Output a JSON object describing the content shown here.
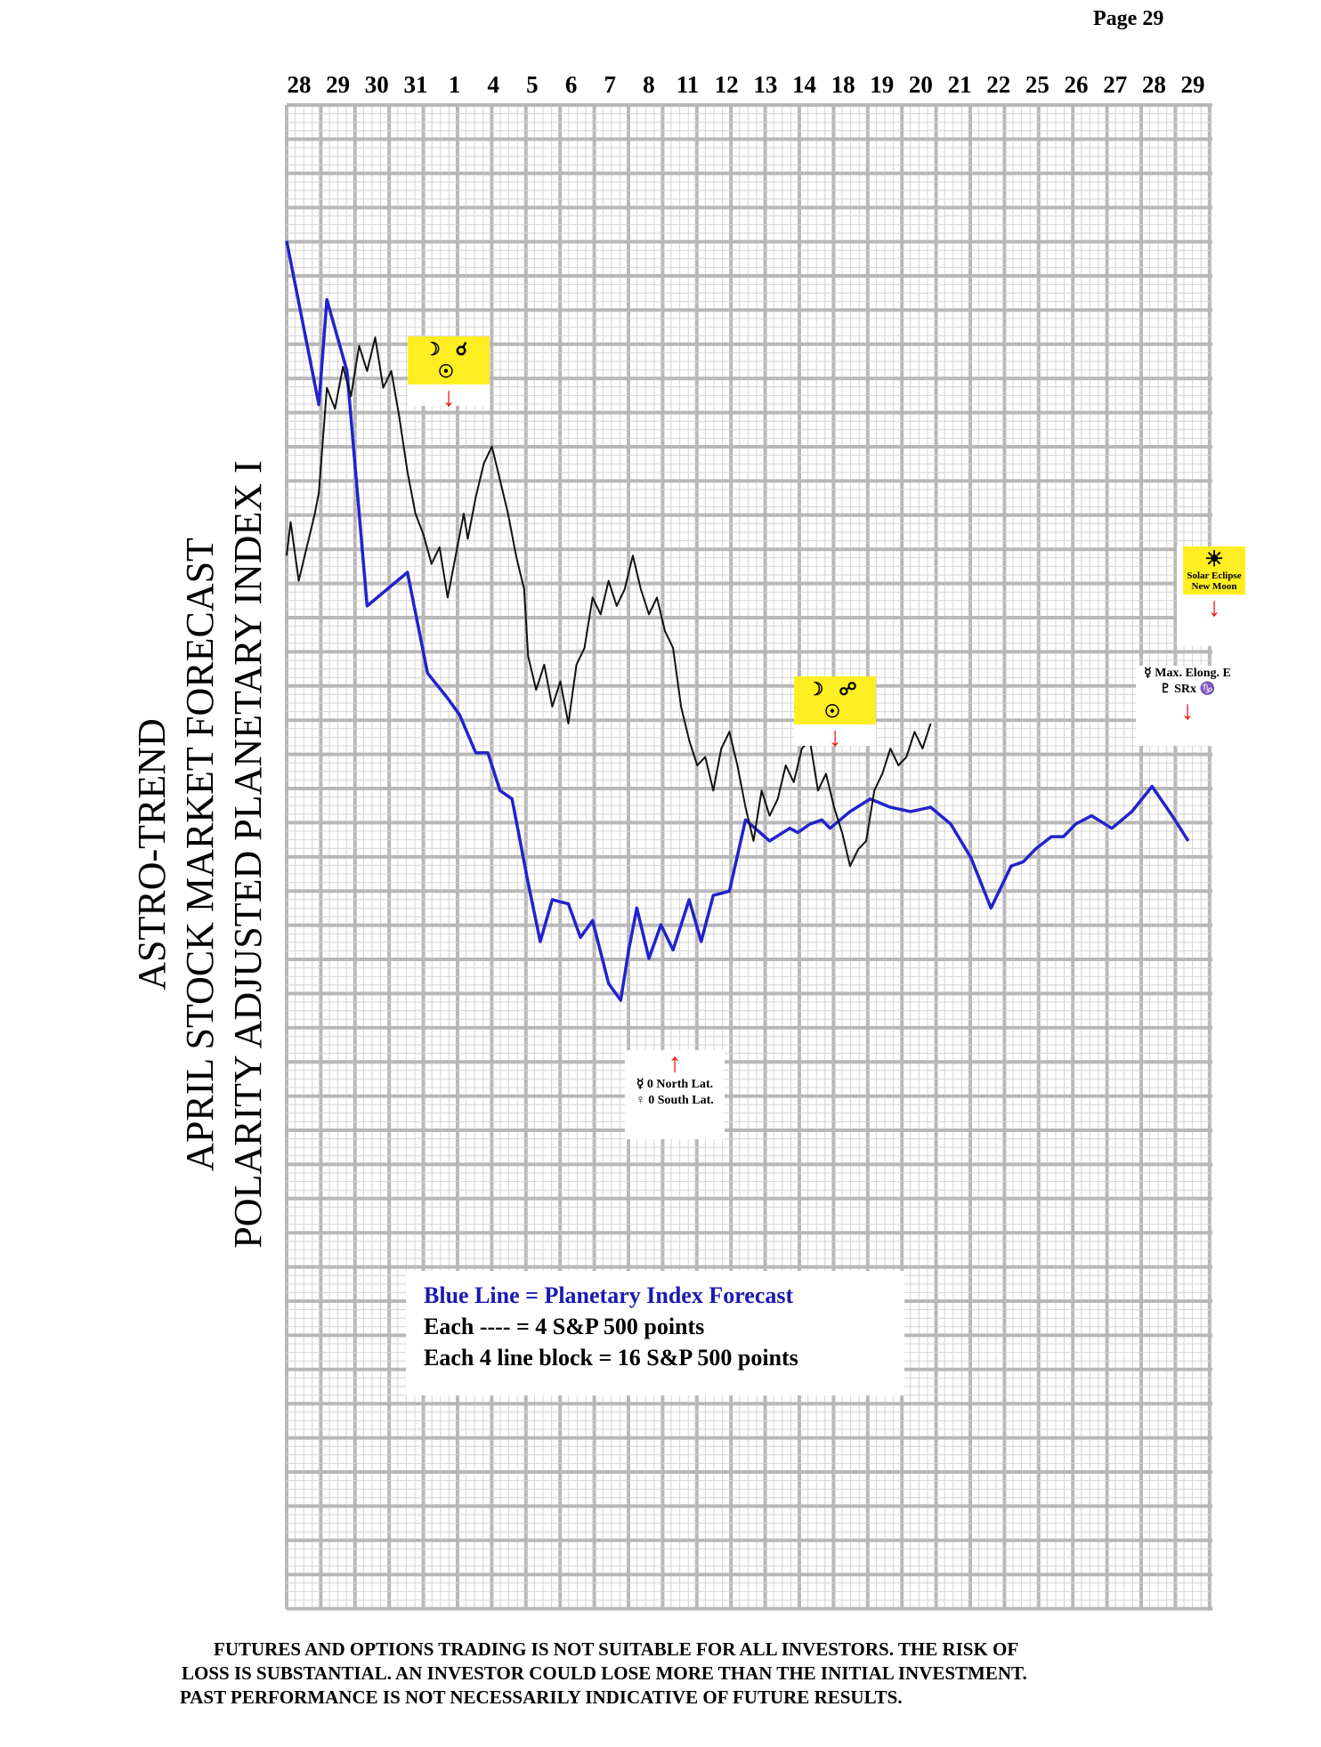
{
  "page": {
    "number_label": "Page  29"
  },
  "title_lines": [
    "ASTRO-TREND",
    "APRIL STOCK MARKET FORECAST",
    "POLARITY ADJUSTED PLANETARY INDEX I"
  ],
  "colors": {
    "forecast_line": "#2222cc",
    "market_line": "#111111",
    "grid_major": "#b8b8b8",
    "grid_minor": "#d4d4d4",
    "annotation_highlight": "#ffee22",
    "arrow": "#ee1111"
  },
  "chart_data": {
    "type": "line",
    "x_date_labels": [
      "28",
      "29",
      "30",
      "31",
      "1",
      "4",
      "5",
      "6",
      "7",
      "8",
      "11",
      "12",
      "13",
      "14",
      "18",
      "19",
      "20",
      "21",
      "22",
      "25",
      "26",
      "27",
      "28",
      "29"
    ],
    "grid": true,
    "series": [
      {
        "name": "Blue Line",
        "color": "#2222cc",
        "x": [
          0,
          0.8,
          1.0,
          1.5,
          2.0,
          3.0,
          3.5,
          4.0,
          4.3,
          4.7,
          5.0,
          5.3,
          5.6,
          6.0,
          6.3,
          6.6,
          7.0,
          7.3,
          7.6,
          8.0,
          8.3,
          8.5,
          8.7,
          9.0,
          9.3,
          9.6,
          10.0,
          10.3,
          10.6,
          11.0,
          11.4,
          12.0,
          12.5,
          12.7,
          13.0,
          13.3,
          13.5,
          14.0,
          14.5,
          15.0,
          15.5,
          16.0,
          16.5,
          17.0,
          17.5,
          18.0,
          18.3,
          18.6,
          19.0,
          19.3,
          19.6,
          20.0,
          20.5,
          21.0,
          21.5,
          22.0,
          22.4
        ],
        "y": [
          45,
          6,
          31,
          14,
          -42,
          -34,
          -58,
          -64,
          -68,
          -77,
          -77,
          -86,
          -88,
          -108,
          -122,
          -112,
          -113,
          -121,
          -117,
          -132,
          -136,
          -124,
          -114,
          -126,
          -118,
          -124,
          -112,
          -122,
          -111,
          -110,
          -93,
          -98,
          -95,
          -96,
          -94,
          -93,
          -95,
          -91,
          -88,
          -90,
          -91,
          -90,
          -94,
          -102,
          -114,
          -104,
          -103,
          -100,
          -97,
          -97,
          -94,
          -92,
          -95,
          -91,
          -85,
          -92,
          -98
        ]
      },
      {
        "name": "S&P 500",
        "color": "#111111",
        "x": [
          0,
          0.1,
          0.3,
          0.5,
          0.7,
          0.8,
          1.0,
          1.2,
          1.4,
          1.6,
          1.8,
          2.0,
          2.2,
          2.4,
          2.6,
          2.8,
          3.0,
          3.2,
          3.4,
          3.6,
          3.8,
          4.0,
          4.2,
          4.4,
          4.5,
          4.7,
          4.9,
          5.1,
          5.3,
          5.5,
          5.7,
          5.9,
          6.0,
          6.2,
          6.4,
          6.6,
          6.8,
          7.0,
          7.2,
          7.4,
          7.6,
          7.8,
          8.0,
          8.2,
          8.4,
          8.6,
          8.8,
          9.0,
          9.2,
          9.4,
          9.6,
          9.8,
          10.0,
          10.2,
          10.4,
          10.6,
          10.8,
          11.0,
          11.2,
          11.4,
          11.6,
          11.8,
          12.0,
          12.2,
          12.4,
          12.6,
          12.8,
          13.0,
          13.2,
          13.4,
          13.6,
          13.8,
          14.0,
          14.2,
          14.4,
          14.6,
          14.8,
          15.0,
          15.2,
          15.4,
          15.6,
          15.8,
          16.0
        ],
        "y": [
          -30,
          -22,
          -36,
          -28,
          -20,
          -15,
          10,
          5,
          15,
          8,
          20,
          14,
          22,
          10,
          14,
          3,
          -10,
          -20,
          -25,
          -32,
          -28,
          -40,
          -30,
          -20,
          -26,
          -16,
          -8,
          -4,
          -12,
          -20,
          -30,
          -38,
          -54,
          -62,
          -56,
          -66,
          -60,
          -70,
          -56,
          -52,
          -40,
          -44,
          -36,
          -42,
          -38,
          -30,
          -38,
          -44,
          -40,
          -48,
          -52,
          -66,
          -74,
          -80,
          -78,
          -86,
          -76,
          -72,
          -80,
          -90,
          -98,
          -86,
          -92,
          -88,
          -80,
          -84,
          -76,
          -74,
          -86,
          -82,
          -90,
          -96,
          -104,
          -100,
          -98,
          -86,
          -82,
          -76,
          -80,
          -78,
          -72,
          -76,
          -70
        ]
      }
    ]
  },
  "annotations": {
    "conj1": {
      "glyphs": "☽ ☌ ☉",
      "arrow": "↓"
    },
    "opp1": {
      "glyphs": "☽ ☍ ☉",
      "arrow": "↓"
    },
    "lat": {
      "arrow": "↑",
      "line1": "☿ 0 North Lat.",
      "line2": "♀ 0 South Lat."
    },
    "eclipse": {
      "sun": "☀",
      "line1": "Solar Eclipse",
      "line2": "New Moon",
      "arrow": "↓"
    },
    "elong": {
      "line1": "☿ Max. Elong. E",
      "line2": "♇ SRx ♑",
      "arrow": "↓"
    }
  },
  "legend": {
    "line1": "Blue Line = Planetary Index Forecast",
    "line2": "Each ---- =   4 S&P 500 points",
    "line3": "Each 4 line block =  16  S&P 500 points"
  },
  "disclaimer": {
    "line1": "FUTURES AND OPTIONS TRADING IS NOT SUITABLE FOR ALL INVESTORS.  THE RISK OF",
    "line2": "LOSS IS SUBSTANTIAL.  AN INVESTOR COULD LOSE MORE THAN THE INITIAL INVESTMENT.",
    "line3": "PAST PERFORMANCE IS NOT NECESSARILY INDICATIVE OF FUTURE RESULTS."
  }
}
